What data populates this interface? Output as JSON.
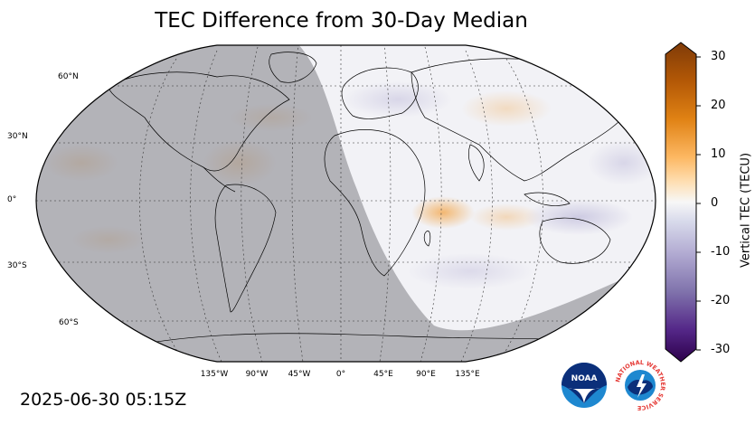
{
  "title": "TEC Difference from 30-Day Median",
  "timestamp": "2025-06-30 05:15Z",
  "map": {
    "projection": "robinson",
    "background": "#f2f2f6",
    "night_shade": "#9a9aa0",
    "lat_labels": [
      "60°N",
      "30°N",
      "0°",
      "30°S",
      "60°S"
    ],
    "lon_labels": [
      "135°W",
      "90°W",
      "45°W",
      "0°",
      "45°E",
      "90°E",
      "135°E"
    ]
  },
  "colorbar": {
    "label": "Vertical TEC (TECU)",
    "ticks": [
      "30",
      "20",
      "10",
      "0",
      "-10",
      "-20",
      "-30"
    ],
    "range": [
      -30,
      30
    ],
    "colors_top_to_bottom": [
      "#7f3b08",
      "#b35806",
      "#e08214",
      "#fdb863",
      "#fee0b6",
      "#f7f7f7",
      "#d8daeb",
      "#b2abd2",
      "#8073ac",
      "#542788",
      "#2d004b"
    ]
  },
  "logos": {
    "noaa": "NOAA",
    "nws": "NATIONAL WEATHER SERVICE"
  }
}
